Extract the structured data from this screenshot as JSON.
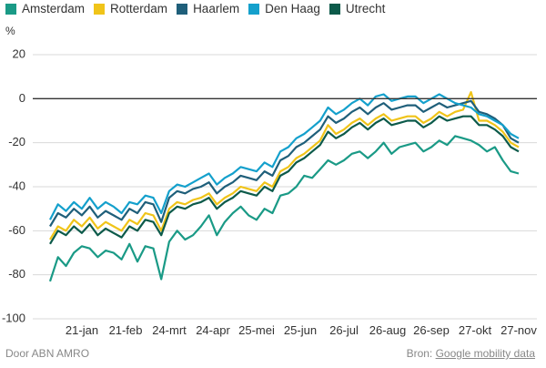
{
  "chart_data": {
    "type": "line",
    "unit_label": "%",
    "ylim": [
      -100,
      20
    ],
    "y_ticks": [
      20,
      0,
      -20,
      -40,
      -60,
      -80,
      -100
    ],
    "x_tick_labels": [
      "21-jan",
      "21-feb",
      "24-mrt",
      "24-apr",
      "25-mei",
      "25-jun",
      "26-jul",
      "26-aug",
      "26-sep",
      "27-okt",
      "27-nov"
    ],
    "zero_line": 0,
    "grid": "horizontal",
    "legend_placement": "top-left",
    "series": [
      {
        "name": "Amsterdam",
        "color": "#1a9a86",
        "values": [
          -83,
          -72,
          -76,
          -70,
          -67,
          -68,
          -72,
          -69,
          -70,
          -73,
          -66,
          -74,
          -67,
          -68,
          -82,
          -65,
          -60,
          -64,
          -62,
          -58,
          -53,
          -62,
          -56,
          -52,
          -49,
          -53,
          -55,
          -50,
          -52,
          -44,
          -43,
          -40,
          -35,
          -36,
          -32,
          -28,
          -30,
          -28,
          -25,
          -24,
          -27,
          -24,
          -20,
          -25,
          -22,
          -21,
          -20,
          -24,
          -22,
          -19,
          -21,
          -17,
          -18,
          -19,
          -21,
          -24,
          -22,
          -28,
          -33,
          -34
        ]
      },
      {
        "name": "Rotterdam",
        "color": "#f0c419",
        "values": [
          -64,
          -58,
          -60,
          -55,
          -58,
          -54,
          -59,
          -56,
          -58,
          -60,
          -55,
          -57,
          -52,
          -53,
          -60,
          -50,
          -47,
          -48,
          -46,
          -45,
          -43,
          -48,
          -45,
          -43,
          -40,
          -41,
          -42,
          -38,
          -40,
          -33,
          -31,
          -27,
          -25,
          -22,
          -19,
          -12,
          -16,
          -14,
          -11,
          -9,
          -12,
          -9,
          -7,
          -10,
          -9,
          -8,
          -8,
          -11,
          -9,
          -6,
          -8,
          -6,
          -5,
          3,
          -10,
          -10,
          -12,
          -15,
          -20,
          -22
        ]
      },
      {
        "name": "Haarlem",
        "color": "#1f5f7a",
        "values": [
          -58,
          -52,
          -54,
          -50,
          -53,
          -49,
          -54,
          -51,
          -53,
          -55,
          -50,
          -52,
          -47,
          -48,
          -56,
          -45,
          -42,
          -43,
          -41,
          -40,
          -38,
          -43,
          -40,
          -38,
          -35,
          -36,
          -37,
          -33,
          -35,
          -28,
          -26,
          -22,
          -20,
          -17,
          -14,
          -8,
          -11,
          -9,
          -6,
          -4,
          -7,
          -4,
          -2,
          -5,
          -4,
          -3,
          -3,
          -6,
          -4,
          -2,
          -4,
          -3,
          -2,
          -1,
          -6,
          -7,
          -9,
          -12,
          -18,
          -20
        ]
      },
      {
        "name": "Den Haag",
        "color": "#14a0cc",
        "values": [
          -55,
          -48,
          -51,
          -47,
          -50,
          -45,
          -50,
          -47,
          -49,
          -52,
          -47,
          -48,
          -44,
          -45,
          -52,
          -42,
          -39,
          -40,
          -38,
          -36,
          -34,
          -39,
          -36,
          -34,
          -31,
          -32,
          -33,
          -29,
          -31,
          -24,
          -22,
          -18,
          -16,
          -13,
          -10,
          -4,
          -7,
          -5,
          -2,
          0,
          -3,
          1,
          2,
          -1,
          0,
          1,
          1,
          -2,
          0,
          2,
          0,
          -2,
          -3,
          -4,
          -7,
          -8,
          -10,
          -12,
          -16,
          -18
        ]
      },
      {
        "name": "Utrecht",
        "color": "#0c5a4a",
        "values": [
          -66,
          -60,
          -62,
          -58,
          -61,
          -57,
          -62,
          -59,
          -61,
          -63,
          -58,
          -60,
          -55,
          -56,
          -62,
          -52,
          -49,
          -50,
          -48,
          -47,
          -45,
          -50,
          -47,
          -45,
          -42,
          -43,
          -44,
          -40,
          -42,
          -35,
          -33,
          -29,
          -27,
          -24,
          -21,
          -15,
          -18,
          -16,
          -13,
          -11,
          -14,
          -11,
          -9,
          -12,
          -11,
          -10,
          -10,
          -13,
          -11,
          -8,
          -10,
          -9,
          -8,
          -8,
          -12,
          -12,
          -14,
          -17,
          -22,
          -24
        ]
      }
    ]
  },
  "footer": {
    "left": "Door ABN AMRO",
    "source_prefix": "Bron:",
    "source_link": "Google mobility data"
  }
}
